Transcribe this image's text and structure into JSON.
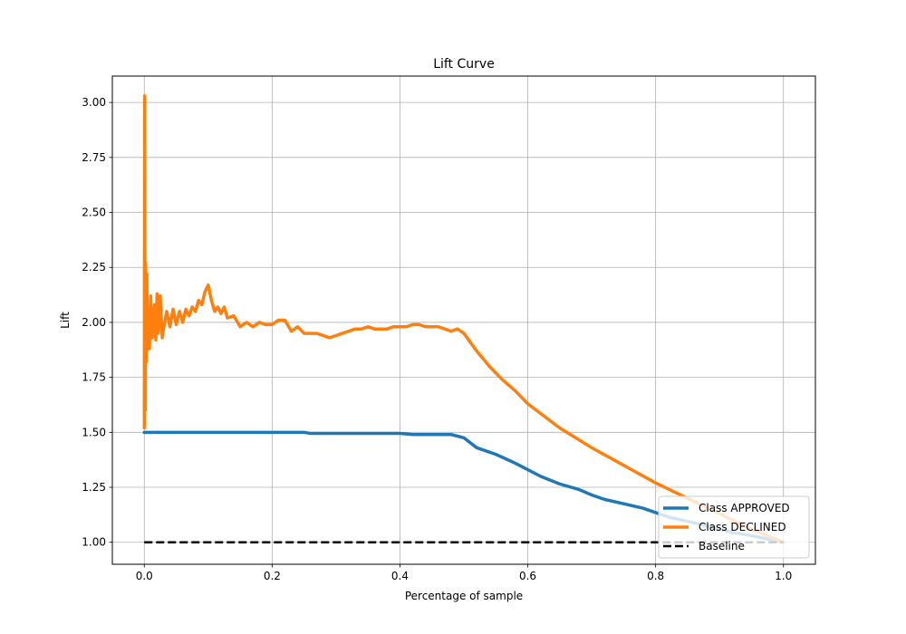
{
  "chart_data": {
    "type": "line",
    "title": "Lift Curve",
    "xlabel": "Percentage of sample",
    "ylabel": "Lift",
    "xlim": [
      -0.05,
      1.05
    ],
    "ylim": [
      0.9,
      3.12
    ],
    "xticks": [
      0.0,
      0.2,
      0.4,
      0.6,
      0.8,
      1.0
    ],
    "xtick_labels": [
      "0.0",
      "0.2",
      "0.4",
      "0.6",
      "0.8",
      "1.0"
    ],
    "yticks": [
      1.0,
      1.25,
      1.5,
      1.75,
      2.0,
      2.25,
      2.5,
      2.75,
      3.0
    ],
    "ytick_labels": [
      "1.00",
      "1.25",
      "1.50",
      "1.75",
      "2.00",
      "2.25",
      "2.50",
      "2.75",
      "3.00"
    ],
    "grid": true,
    "legend_position": "lower-right",
    "series": [
      {
        "name": "Class APPROVED",
        "color": "#1f77b4",
        "style": "solid",
        "x": [
          0.0,
          0.05,
          0.1,
          0.15,
          0.2,
          0.25,
          0.26,
          0.3,
          0.35,
          0.4,
          0.42,
          0.45,
          0.48,
          0.5,
          0.52,
          0.55,
          0.58,
          0.6,
          0.62,
          0.65,
          0.68,
          0.7,
          0.72,
          0.75,
          0.78,
          0.8,
          0.82,
          0.85,
          0.88,
          0.9,
          0.92,
          0.95,
          0.98,
          1.0
        ],
        "y": [
          1.5,
          1.5,
          1.5,
          1.5,
          1.5,
          1.5,
          1.495,
          1.495,
          1.495,
          1.495,
          1.49,
          1.49,
          1.49,
          1.475,
          1.43,
          1.4,
          1.36,
          1.33,
          1.3,
          1.265,
          1.24,
          1.215,
          1.195,
          1.175,
          1.155,
          1.135,
          1.115,
          1.095,
          1.075,
          1.06,
          1.045,
          1.03,
          1.012,
          1.0
        ]
      },
      {
        "name": "Class DECLINED",
        "color": "#ff7f0e",
        "style": "solid",
        "x": [
          0.0,
          0.0005,
          0.001,
          0.0015,
          0.002,
          0.003,
          0.004,
          0.005,
          0.006,
          0.008,
          0.01,
          0.012,
          0.014,
          0.016,
          0.018,
          0.02,
          0.022,
          0.025,
          0.028,
          0.03,
          0.035,
          0.04,
          0.045,
          0.05,
          0.055,
          0.06,
          0.065,
          0.07,
          0.075,
          0.08,
          0.085,
          0.09,
          0.095,
          0.1,
          0.105,
          0.11,
          0.115,
          0.12,
          0.125,
          0.13,
          0.14,
          0.15,
          0.16,
          0.17,
          0.18,
          0.19,
          0.2,
          0.21,
          0.22,
          0.23,
          0.24,
          0.25,
          0.26,
          0.27,
          0.28,
          0.29,
          0.3,
          0.31,
          0.32,
          0.33,
          0.34,
          0.35,
          0.36,
          0.37,
          0.38,
          0.39,
          0.4,
          0.41,
          0.42,
          0.43,
          0.44,
          0.45,
          0.46,
          0.47,
          0.48,
          0.49,
          0.5,
          0.52,
          0.54,
          0.56,
          0.58,
          0.6,
          0.65,
          0.7,
          0.75,
          0.8,
          0.85,
          0.9,
          0.95,
          1.0
        ],
        "y": [
          1.52,
          3.03,
          2.2,
          1.6,
          2.27,
          1.82,
          2.22,
          1.9,
          2.05,
          1.88,
          2.12,
          1.93,
          2.02,
          2.08,
          1.92,
          2.13,
          1.95,
          2.12,
          1.93,
          1.97,
          2.05,
          1.98,
          2.06,
          1.99,
          2.05,
          2.0,
          2.06,
          2.03,
          2.07,
          2.05,
          2.1,
          2.08,
          2.14,
          2.17,
          2.1,
          2.05,
          2.07,
          2.04,
          2.07,
          2.02,
          2.03,
          1.98,
          2.0,
          1.98,
          2.0,
          1.99,
          1.99,
          2.01,
          2.01,
          1.96,
          1.98,
          1.95,
          1.95,
          1.95,
          1.94,
          1.93,
          1.94,
          1.95,
          1.96,
          1.97,
          1.97,
          1.98,
          1.97,
          1.97,
          1.97,
          1.98,
          1.98,
          1.98,
          1.99,
          1.99,
          1.98,
          1.98,
          1.98,
          1.97,
          1.96,
          1.97,
          1.95,
          1.87,
          1.8,
          1.74,
          1.69,
          1.63,
          1.52,
          1.43,
          1.35,
          1.27,
          1.2,
          1.13,
          1.06,
          1.0
        ]
      },
      {
        "name": "Baseline",
        "color": "#000000",
        "style": "dashed",
        "x": [
          0.0,
          1.0
        ],
        "y": [
          1.0,
          1.0
        ]
      }
    ]
  }
}
